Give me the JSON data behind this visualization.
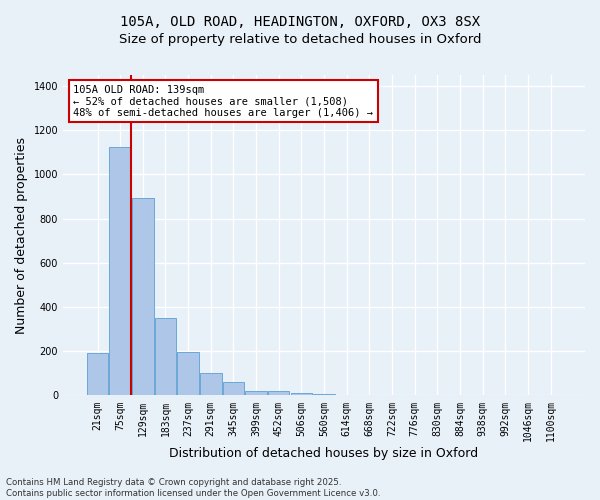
{
  "title_line1": "105A, OLD ROAD, HEADINGTON, OXFORD, OX3 8SX",
  "title_line2": "Size of property relative to detached houses in Oxford",
  "xlabel": "Distribution of detached houses by size in Oxford",
  "ylabel": "Number of detached properties",
  "categories": [
    "21sqm",
    "75sqm",
    "129sqm",
    "183sqm",
    "237sqm",
    "291sqm",
    "345sqm",
    "399sqm",
    "452sqm",
    "506sqm",
    "560sqm",
    "614sqm",
    "668sqm",
    "722sqm",
    "776sqm",
    "830sqm",
    "884sqm",
    "938sqm",
    "992sqm",
    "1046sqm",
    "1100sqm"
  ],
  "values": [
    190,
    1125,
    895,
    350,
    195,
    100,
    62,
    22,
    18,
    10,
    5,
    0,
    0,
    0,
    0,
    0,
    0,
    0,
    0,
    0,
    0
  ],
  "bar_color": "#aec6e8",
  "bar_edge_color": "#5a9fd4",
  "vline_pos": 1.5,
  "vline_color": "#cc0000",
  "annotation_text": "105A OLD ROAD: 139sqm\n← 52% of detached houses are smaller (1,508)\n48% of semi-detached houses are larger (1,406) →",
  "annotation_box_color": "#cc0000",
  "annotation_box_facecolor": "white",
  "ylim": [
    0,
    1450
  ],
  "yticks": [
    0,
    200,
    400,
    600,
    800,
    1000,
    1200,
    1400
  ],
  "background_color": "#e8f0f8",
  "footer_line1": "Contains HM Land Registry data © Crown copyright and database right 2025.",
  "footer_line2": "Contains public sector information licensed under the Open Government Licence v3.0.",
  "grid_color": "white",
  "title_fontsize": 10,
  "subtitle_fontsize": 9.5,
  "tick_fontsize": 7,
  "label_fontsize": 9,
  "annotation_fontsize": 7.5
}
